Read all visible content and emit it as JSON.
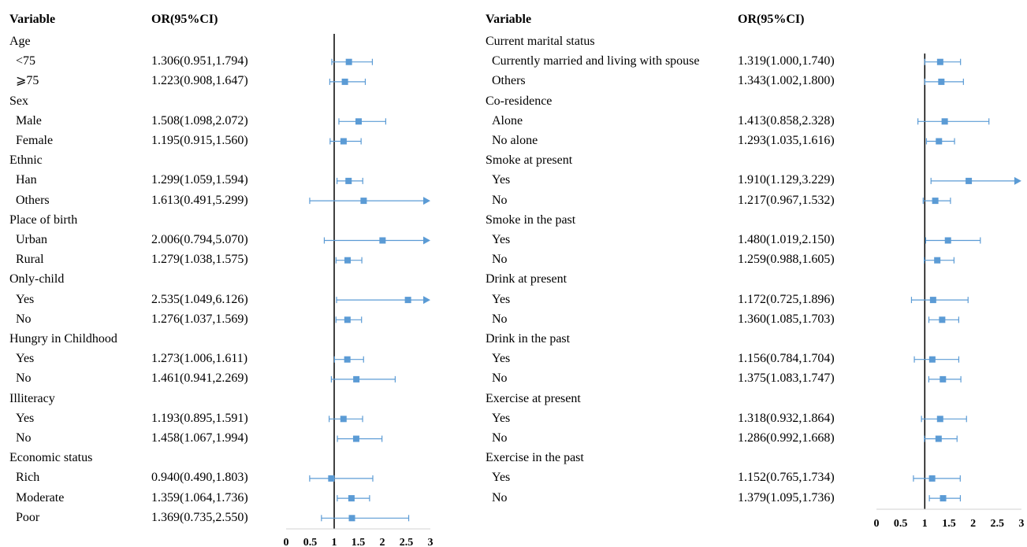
{
  "headers": {
    "variable": "Variable",
    "or": "OR(95%CI)"
  },
  "chart_data": [
    {
      "type": "forest",
      "xlim": [
        0,
        3
      ],
      "reference_line": 1,
      "ticks": [
        "0",
        "0.5",
        "1",
        "1.5",
        "2",
        "2.5",
        "3"
      ],
      "tick_values": [
        0,
        0.5,
        1,
        1.5,
        2,
        2.5,
        3
      ],
      "color": "#5b9bd5",
      "rows": [
        {
          "label": "Age",
          "group": true
        },
        {
          "label": "<75",
          "or": 1.306,
          "lo": 0.951,
          "hi": 1.794,
          "text": "1.306(0.951,1.794)"
        },
        {
          "label": "⩾75",
          "or": 1.223,
          "lo": 0.908,
          "hi": 1.647,
          "text": "1.223(0.908,1.647)"
        },
        {
          "label": "Sex",
          "group": true
        },
        {
          "label": "Male",
          "or": 1.508,
          "lo": 1.098,
          "hi": 2.072,
          "text": "1.508(1.098,2.072)"
        },
        {
          "label": "Female",
          "or": 1.195,
          "lo": 0.915,
          "hi": 1.56,
          "text": "1.195(0.915,1.560)"
        },
        {
          "label": "Ethnic",
          "group": true
        },
        {
          "label": "Han",
          "or": 1.299,
          "lo": 1.059,
          "hi": 1.594,
          "text": "1.299(1.059,1.594)"
        },
        {
          "label": "Others",
          "or": 1.613,
          "lo": 0.491,
          "hi": 5.299,
          "text": "1.613(0.491,5.299)"
        },
        {
          "label": "Place of birth",
          "group": true
        },
        {
          "label": "Urban",
          "or": 2.006,
          "lo": 0.794,
          "hi": 5.07,
          "text": "2.006(0.794,5.070)"
        },
        {
          "label": "Rural",
          "or": 1.279,
          "lo": 1.038,
          "hi": 1.575,
          "text": "1.279(1.038,1.575)"
        },
        {
          "label": "Only-child",
          "group": true
        },
        {
          "label": "Yes",
          "or": 2.535,
          "lo": 1.049,
          "hi": 6.126,
          "text": "2.535(1.049,6.126)"
        },
        {
          "label": "No",
          "or": 1.276,
          "lo": 1.037,
          "hi": 1.569,
          "text": "1.276(1.037,1.569)"
        },
        {
          "label": "Hungry in Childhood",
          "group": true
        },
        {
          "label": "Yes",
          "or": 1.273,
          "lo": 1.006,
          "hi": 1.611,
          "text": "1.273(1.006,1.611)"
        },
        {
          "label": "No",
          "or": 1.461,
          "lo": 0.941,
          "hi": 2.269,
          "text": "1.461(0.941,2.269)"
        },
        {
          "label": "Illiteracy",
          "group": true
        },
        {
          "label": "Yes",
          "or": 1.193,
          "lo": 0.895,
          "hi": 1.591,
          "text": "1.193(0.895,1.591)"
        },
        {
          "label": "No",
          "or": 1.458,
          "lo": 1.067,
          "hi": 1.994,
          "text": "1.458(1.067,1.994)"
        },
        {
          "label": "Economic status",
          "group": true
        },
        {
          "label": "Rich",
          "or": 0.94,
          "lo": 0.49,
          "hi": 1.803,
          "text": "0.940(0.490,1.803)"
        },
        {
          "label": "Moderate",
          "or": 1.359,
          "lo": 1.064,
          "hi": 1.736,
          "text": "1.359(1.064,1.736)"
        },
        {
          "label": "Poor",
          "or": 1.369,
          "lo": 0.735,
          "hi": 2.55,
          "text": "1.369(0.735,2.550)"
        }
      ]
    },
    {
      "type": "forest",
      "xlim": [
        0,
        3
      ],
      "reference_line": 1,
      "ticks": [
        "0",
        "0.5",
        "1",
        "1.5",
        "2",
        "2.5",
        "3"
      ],
      "tick_values": [
        0,
        0.5,
        1,
        1.5,
        2,
        2.5,
        3
      ],
      "color": "#5b9bd5",
      "rows": [
        {
          "label": "Current marital status",
          "group": true
        },
        {
          "label": "Currently married and living with spouse",
          "or": 1.319,
          "lo": 1.0,
          "hi": 1.74,
          "text": "1.319(1.000,1.740)"
        },
        {
          "label": "Others",
          "or": 1.343,
          "lo": 1.002,
          "hi": 1.8,
          "text": "1.343(1.002,1.800)"
        },
        {
          "label": "Co-residence",
          "group": true
        },
        {
          "label": "Alone",
          "or": 1.413,
          "lo": 0.858,
          "hi": 2.328,
          "text": "1.413(0.858,2.328)"
        },
        {
          "label": "No alone",
          "or": 1.293,
          "lo": 1.035,
          "hi": 1.616,
          "text": "1.293(1.035,1.616)"
        },
        {
          "label": "Smoke at present",
          "group": true
        },
        {
          "label": "Yes",
          "or": 1.91,
          "lo": 1.129,
          "hi": 3.229,
          "text": "1.910(1.129,3.229)"
        },
        {
          "label": "No",
          "or": 1.217,
          "lo": 0.967,
          "hi": 1.532,
          "text": "1.217(0.967,1.532)"
        },
        {
          "label": "Smoke in the past",
          "group": true
        },
        {
          "label": "Yes",
          "or": 1.48,
          "lo": 1.019,
          "hi": 2.15,
          "text": "1.480(1.019,2.150)"
        },
        {
          "label": "No",
          "or": 1.259,
          "lo": 0.988,
          "hi": 1.605,
          "text": "1.259(0.988,1.605)"
        },
        {
          "label": "Drink at present",
          "group": true
        },
        {
          "label": "Yes",
          "or": 1.172,
          "lo": 0.725,
          "hi": 1.896,
          "text": "1.172(0.725,1.896)"
        },
        {
          "label": "No",
          "or": 1.36,
          "lo": 1.085,
          "hi": 1.703,
          "text": "1.360(1.085,1.703)"
        },
        {
          "label": "Drink in the past",
          "group": true
        },
        {
          "label": "Yes",
          "or": 1.156,
          "lo": 0.784,
          "hi": 1.704,
          "text": "1.156(0.784,1.704)"
        },
        {
          "label": "No",
          "or": 1.375,
          "lo": 1.083,
          "hi": 1.747,
          "text": "1.375(1.083,1.747)"
        },
        {
          "label": "Exercise at present",
          "group": true
        },
        {
          "label": "Yes",
          "or": 1.318,
          "lo": 0.932,
          "hi": 1.864,
          "text": "1.318(0.932,1.864)"
        },
        {
          "label": "No",
          "or": 1.286,
          "lo": 0.992,
          "hi": 1.668,
          "text": "1.286(0.992,1.668)"
        },
        {
          "label": "Exercise in the past",
          "group": true
        },
        {
          "label": "Yes",
          "or": 1.152,
          "lo": 0.765,
          "hi": 1.734,
          "text": "1.152(0.765,1.734)"
        },
        {
          "label": "No",
          "or": 1.379,
          "lo": 1.095,
          "hi": 1.736,
          "text": "1.379(1.095,1.736)"
        }
      ]
    }
  ]
}
